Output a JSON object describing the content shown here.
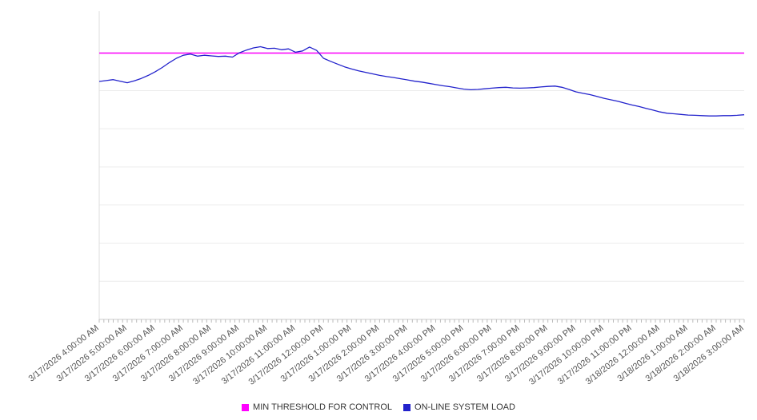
{
  "chart_data": {
    "type": "line",
    "title": "",
    "xlabel": "",
    "ylabel": "",
    "ylim": [
      0,
      100
    ],
    "grid": "horizontal",
    "legend_position": "bottom",
    "x_tick_labels": [
      "3/17/2026 4:00:00 AM",
      "3/17/2026 5:00:00 AM",
      "3/17/2026 6:00:00 AM",
      "3/17/2026 7:00:00 AM",
      "3/17/2026 8:00:00 AM",
      "3/17/2026 9:00:00 AM",
      "3/17/2026 10:00:00 AM",
      "3/17/2026 11:00:00 AM",
      "3/17/2026 12:00:00 PM",
      "3/17/2026 1:00:00 PM",
      "3/17/2026 2:00:00 PM",
      "3/17/2026 3:00:00 PM",
      "3/17/2026 4:00:00 PM",
      "3/17/2026 5:00:00 PM",
      "3/17/2026 6:00:00 PM",
      "3/17/2026 7:00:00 PM",
      "3/17/2026 8:00:00 PM",
      "3/17/2026 9:00:00 PM",
      "3/17/2026 10:00:00 PM",
      "3/17/2026 11:00:00 PM",
      "3/18/2026 12:00:00 AM",
      "3/18/2026 1:00:00 AM",
      "3/18/2026 2:00:00 AM",
      "3/18/2026 3:00:00 AM"
    ],
    "x_span_hours": 23,
    "sample_interval_hours": 0.25,
    "series": [
      {
        "name": "ON-LINE SYSTEM LOAD",
        "color": "#2222cc",
        "values": [
          78.0,
          78.3,
          78.6,
          78.1,
          77.6,
          78.2,
          79.0,
          80.0,
          81.2,
          82.6,
          84.2,
          85.6,
          86.6,
          87.0,
          86.3,
          86.6,
          86.4,
          86.2,
          86.3,
          86.0,
          87.4,
          88.3,
          89.0,
          89.4,
          88.8,
          88.9,
          88.4,
          88.7,
          87.6,
          88.0,
          89.3,
          88.2,
          85.6,
          84.6,
          83.7,
          82.8,
          82.1,
          81.5,
          81.0,
          80.5,
          80.0,
          79.6,
          79.3,
          78.9,
          78.5,
          78.1,
          77.8,
          77.4,
          77.0,
          76.6,
          76.3,
          75.9,
          75.5,
          75.3,
          75.4,
          75.6,
          75.8,
          76.0,
          76.1,
          75.9,
          75.8,
          75.9,
          76.0,
          76.2,
          76.4,
          76.5,
          76.1,
          75.4,
          74.6,
          74.1,
          73.7,
          73.1,
          72.5,
          72.0,
          71.5,
          70.9,
          70.3,
          69.8,
          69.2,
          68.6,
          68.0,
          67.6,
          67.4,
          67.2,
          67.0,
          66.9,
          66.8,
          66.7,
          66.7,
          66.8,
          66.8,
          66.9,
          67.1
        ]
      }
    ],
    "threshold": {
      "name": "MIN THRESHOLD FOR CONTROL",
      "color": "#ff00ff",
      "value": 87.3
    },
    "colors": {
      "grid": "#ececec",
      "axis_line": "#cccccc",
      "left_axis_line": "#dddddd",
      "tick": "#bbbbbb",
      "tick_text": "#555555"
    }
  },
  "legend": {
    "items": [
      {
        "label": "MIN THRESHOLD FOR CONTROL",
        "color": "#ff00ff"
      },
      {
        "label": "ON-LINE SYSTEM LOAD",
        "color": "#2222cc"
      }
    ]
  }
}
